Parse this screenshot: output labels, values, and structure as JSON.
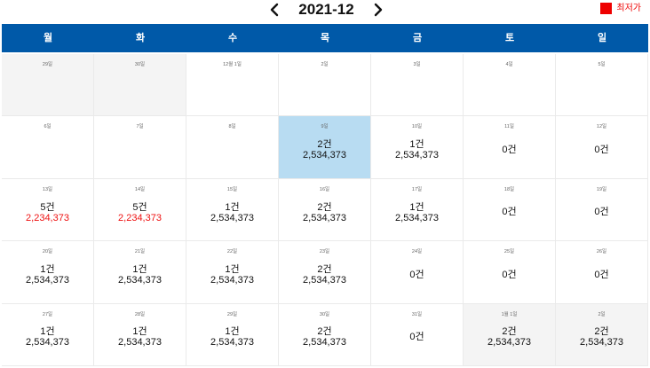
{
  "calendar": {
    "title": "2021-12",
    "prev_icon": "chevron-left-icon",
    "next_icon": "chevron-right-icon"
  },
  "legend": {
    "label": "최저가",
    "color": "#ee0000"
  },
  "colors": {
    "header": "#0059a8",
    "selected": "#b8dcf2",
    "lowest_price": "#ee1111",
    "outside_month": "#f4f4f4"
  },
  "weekdays": [
    "월",
    "화",
    "수",
    "목",
    "금",
    "토",
    "일"
  ],
  "days": [
    {
      "date": "29일",
      "count": "",
      "price": ""
    },
    {
      "date": "30일",
      "count": "",
      "price": ""
    },
    {
      "date": "12월 1일",
      "count": "",
      "price": ""
    },
    {
      "date": "2일",
      "count": "",
      "price": ""
    },
    {
      "date": "3일",
      "count": "",
      "price": ""
    },
    {
      "date": "4일",
      "count": "",
      "price": ""
    },
    {
      "date": "5일",
      "count": "",
      "price": ""
    },
    {
      "date": "6일",
      "count": "",
      "price": ""
    },
    {
      "date": "7일",
      "count": "",
      "price": ""
    },
    {
      "date": "8일",
      "count": "",
      "price": ""
    },
    {
      "date": "9일",
      "count": "2건",
      "price": "2,534,373"
    },
    {
      "date": "10일",
      "count": "1건",
      "price": "2,534,373"
    },
    {
      "date": "11일",
      "count": "0건",
      "price": ""
    },
    {
      "date": "12일",
      "count": "0건",
      "price": ""
    },
    {
      "date": "13일",
      "count": "5건",
      "price": "2,234,373"
    },
    {
      "date": "14일",
      "count": "5건",
      "price": "2,234,373"
    },
    {
      "date": "15일",
      "count": "1건",
      "price": "2,534,373"
    },
    {
      "date": "16일",
      "count": "2건",
      "price": "2,534,373"
    },
    {
      "date": "17일",
      "count": "1건",
      "price": "2,534,373"
    },
    {
      "date": "18일",
      "count": "0건",
      "price": ""
    },
    {
      "date": "19일",
      "count": "0건",
      "price": ""
    },
    {
      "date": "20일",
      "count": "1건",
      "price": "2,534,373"
    },
    {
      "date": "21일",
      "count": "1건",
      "price": "2,534,373"
    },
    {
      "date": "22일",
      "count": "1건",
      "price": "2,534,373"
    },
    {
      "date": "23일",
      "count": "2건",
      "price": "2,534,373"
    },
    {
      "date": "24일",
      "count": "0건",
      "price": ""
    },
    {
      "date": "25일",
      "count": "0건",
      "price": ""
    },
    {
      "date": "26일",
      "count": "0건",
      "price": ""
    },
    {
      "date": "27일",
      "count": "1건",
      "price": "2,534,373"
    },
    {
      "date": "28일",
      "count": "1건",
      "price": "2,534,373"
    },
    {
      "date": "29일",
      "count": "1건",
      "price": "2,534,373"
    },
    {
      "date": "30일",
      "count": "2건",
      "price": "2,534,373"
    },
    {
      "date": "31일",
      "count": "0건",
      "price": ""
    },
    {
      "date": "1월 1일",
      "count": "2건",
      "price": "2,534,373"
    },
    {
      "date": "2일",
      "count": "2건",
      "price": "2,534,373"
    }
  ]
}
